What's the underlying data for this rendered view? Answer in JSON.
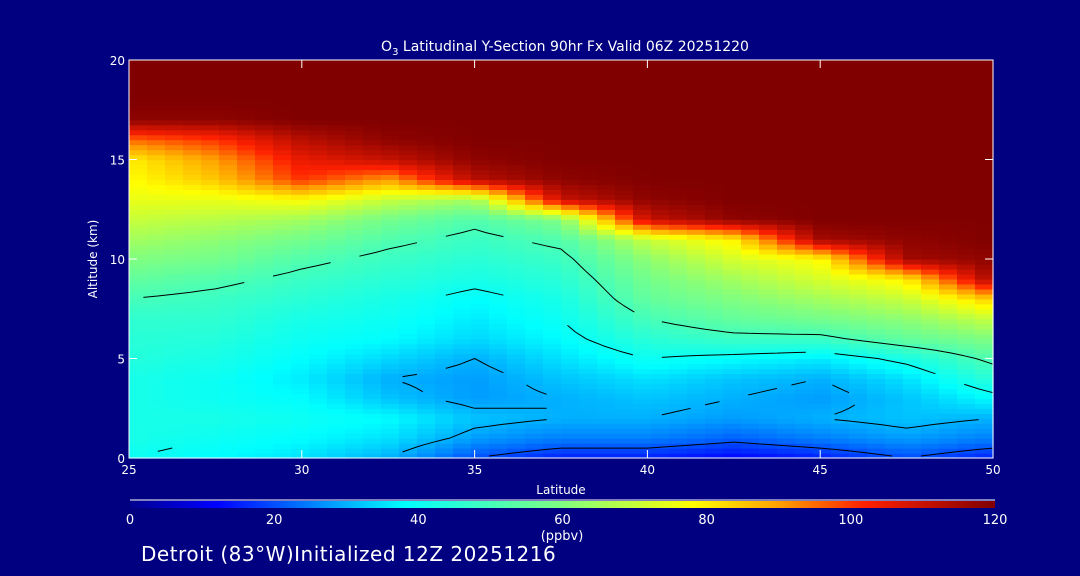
{
  "chart_data": {
    "type": "heatmap",
    "title_prefix": "O",
    "title_subscript": "3",
    "title_rest": " Latitudinal Y-Section 90hr  Fx Valid 06Z 20251220",
    "xlabel": "Latitude",
    "ylabel": "Altitude (km)",
    "xlim": [
      25,
      50
    ],
    "ylim": [
      0,
      20
    ],
    "x_ticks": [
      25,
      30,
      35,
      40,
      45,
      50
    ],
    "y_ticks": [
      0,
      5,
      10,
      15,
      20
    ],
    "colorbar": {
      "label": "(ppbv)",
      "range": [
        0,
        120
      ],
      "ticks": [
        0,
        20,
        40,
        60,
        80,
        100,
        120
      ],
      "stops": [
        [
          0,
          "#000090"
        ],
        [
          12,
          "#0000ff"
        ],
        [
          38,
          "#00ffff"
        ],
        [
          60,
          "#80ff80"
        ],
        [
          78,
          "#ffff00"
        ],
        [
          90,
          "#ffa000"
        ],
        [
          102,
          "#ff2000"
        ],
        [
          120,
          "#800000"
        ]
      ]
    },
    "contour_levels": [
      10,
      20,
      30,
      40,
      50
    ],
    "grid_lat": [
      25,
      27.5,
      30,
      32.5,
      35,
      37.5,
      40,
      42.5,
      45,
      47.5,
      50
    ],
    "grid_alt": [
      0,
      1,
      2,
      3,
      4,
      5,
      6,
      7,
      8,
      9,
      10,
      11,
      12,
      13,
      14,
      15,
      16,
      17,
      18,
      19,
      20
    ],
    "values": [
      [
        40,
        38,
        35,
        30,
        20,
        15,
        15,
        12,
        15,
        20,
        15
      ],
      [
        42,
        40,
        38,
        35,
        28,
        25,
        25,
        22,
        25,
        28,
        25
      ],
      [
        42,
        42,
        40,
        38,
        32,
        30,
        30,
        28,
        30,
        32,
        30
      ],
      [
        42,
        40,
        38,
        32,
        28,
        30,
        32,
        30,
        28,
        32,
        38
      ],
      [
        42,
        40,
        36,
        30,
        28,
        32,
        35,
        32,
        30,
        35,
        45
      ],
      [
        44,
        42,
        38,
        34,
        30,
        35,
        40,
        38,
        36,
        42,
        52
      ],
      [
        45,
        44,
        40,
        38,
        34,
        38,
        45,
        48,
        48,
        55,
        60
      ],
      [
        46,
        46,
        42,
        40,
        36,
        40,
        50,
        55,
        58,
        62,
        70
      ],
      [
        50,
        48,
        45,
        42,
        38,
        42,
        55,
        60,
        65,
        70,
        85
      ],
      [
        55,
        52,
        48,
        45,
        42,
        45,
        58,
        65,
        72,
        80,
        115
      ],
      [
        60,
        58,
        52,
        48,
        45,
        48,
        62,
        72,
        78,
        115,
        118
      ],
      [
        65,
        62,
        58,
        52,
        48,
        52,
        70,
        80,
        115,
        118,
        120
      ],
      [
        70,
        68,
        65,
        58,
        52,
        60,
        110,
        118,
        120,
        120,
        120
      ],
      [
        75,
        75,
        78,
        70,
        65,
        110,
        118,
        120,
        120,
        120,
        120
      ],
      [
        78,
        85,
        100,
        90,
        112,
        118,
        120,
        120,
        120,
        120,
        120
      ],
      [
        80,
        90,
        105,
        110,
        118,
        120,
        120,
        120,
        120,
        120,
        120
      ],
      [
        95,
        100,
        112,
        118,
        120,
        120,
        120,
        120,
        120,
        120,
        120
      ],
      [
        118,
        118,
        120,
        120,
        120,
        120,
        120,
        120,
        120,
        120,
        120
      ],
      [
        120,
        120,
        120,
        120,
        120,
        120,
        120,
        120,
        120,
        120,
        120
      ],
      [
        120,
        120,
        120,
        120,
        120,
        120,
        120,
        120,
        120,
        120,
        120
      ],
      [
        120,
        120,
        120,
        120,
        120,
        120,
        120,
        120,
        120,
        120,
        120
      ]
    ]
  },
  "footer": "Detroit (83°W)Initialized 12Z 20251216"
}
